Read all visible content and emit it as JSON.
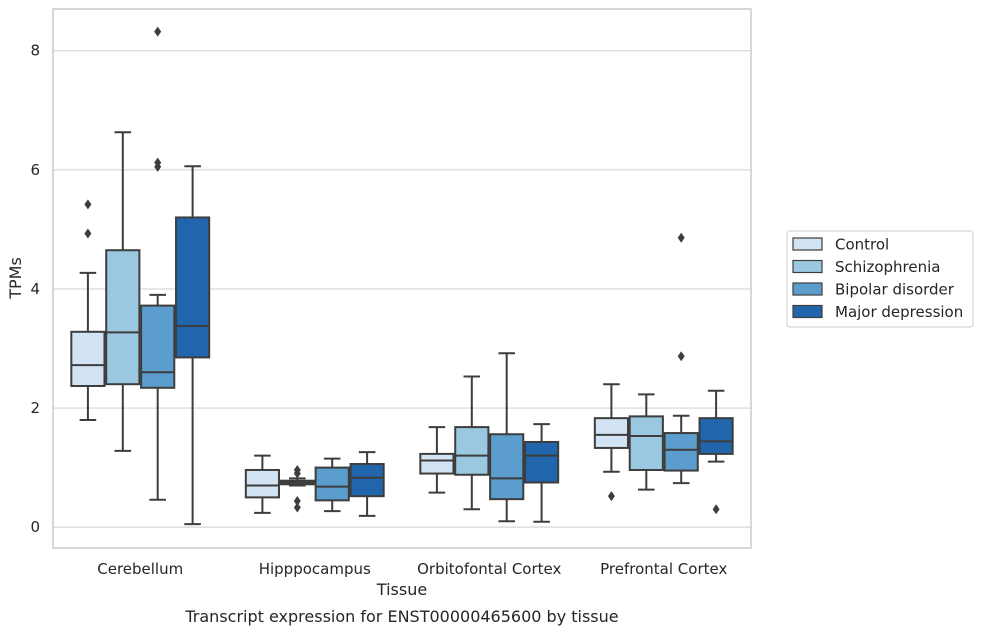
{
  "chart_data": {
    "type": "boxplot",
    "xlabel": "Tissue",
    "ylabel": "TPMs",
    "caption": "Transcript expression for ENST00000465600 by tissue",
    "ylim": [
      -0.35,
      8.7
    ],
    "yticks": [
      0,
      2,
      4,
      6,
      8
    ],
    "grid": "horizontal",
    "legend_position": "right",
    "categories": [
      "Cerebellum",
      "Hipppocampus",
      "Orbitofontal Cortex",
      "Prefrontal Cortex"
    ],
    "series": [
      {
        "name": "Control",
        "color": "#d2e3f3",
        "boxes": [
          {
            "whislo": 1.8,
            "q1": 2.37,
            "med": 2.72,
            "q3": 3.28,
            "whishi": 4.27,
            "fliers": [
              4.93,
              5.42
            ]
          },
          {
            "whislo": 0.24,
            "q1": 0.5,
            "med": 0.7,
            "q3": 0.96,
            "whishi": 1.2,
            "fliers": []
          },
          {
            "whislo": 0.58,
            "q1": 0.9,
            "med": 1.12,
            "q3": 1.23,
            "whishi": 1.68,
            "fliers": []
          },
          {
            "whislo": 0.93,
            "q1": 1.33,
            "med": 1.55,
            "q3": 1.83,
            "whishi": 2.4,
            "fliers": [
              0.52
            ]
          }
        ]
      },
      {
        "name": "Schizophrenia",
        "color": "#9ac8e0",
        "boxes": [
          {
            "whislo": 1.28,
            "q1": 2.4,
            "med": 3.27,
            "q3": 4.65,
            "whishi": 6.63,
            "fliers": []
          },
          {
            "whislo": 0.7,
            "q1": 0.72,
            "med": 0.75,
            "q3": 0.78,
            "whishi": 0.82,
            "fliers": [
              0.33,
              0.44,
              0.9,
              0.96
            ]
          },
          {
            "whislo": 0.3,
            "q1": 0.88,
            "med": 1.2,
            "q3": 1.68,
            "whishi": 2.53,
            "fliers": []
          },
          {
            "whislo": 0.63,
            "q1": 0.96,
            "med": 1.53,
            "q3": 1.86,
            "whishi": 2.23,
            "fliers": []
          }
        ]
      },
      {
        "name": "Bipolar disorder",
        "color": "#5b9ecd",
        "boxes": [
          {
            "whislo": 0.46,
            "q1": 2.34,
            "med": 2.6,
            "q3": 3.72,
            "whishi": 3.9,
            "fliers": [
              6.05,
              6.12,
              8.32
            ]
          },
          {
            "whislo": 0.27,
            "q1": 0.45,
            "med": 0.68,
            "q3": 1.0,
            "whishi": 1.15,
            "fliers": []
          },
          {
            "whislo": 0.1,
            "q1": 0.47,
            "med": 0.82,
            "q3": 1.56,
            "whishi": 2.92,
            "fliers": []
          },
          {
            "whislo": 0.74,
            "q1": 0.95,
            "med": 1.3,
            "q3": 1.58,
            "whishi": 1.87,
            "fliers": [
              2.87,
              4.86
            ]
          }
        ]
      },
      {
        "name": "Major depression",
        "color": "#2166ac",
        "boxes": [
          {
            "whislo": 0.05,
            "q1": 2.85,
            "med": 3.38,
            "q3": 5.2,
            "whishi": 6.06,
            "fliers": []
          },
          {
            "whislo": 0.19,
            "q1": 0.52,
            "med": 0.83,
            "q3": 1.06,
            "whishi": 1.26,
            "fliers": []
          },
          {
            "whislo": 0.09,
            "q1": 0.75,
            "med": 1.2,
            "q3": 1.43,
            "whishi": 1.73,
            "fliers": []
          },
          {
            "whislo": 1.1,
            "q1": 1.23,
            "med": 1.44,
            "q3": 1.83,
            "whishi": 2.29,
            "fliers": [
              0.3
            ]
          }
        ]
      }
    ]
  }
}
